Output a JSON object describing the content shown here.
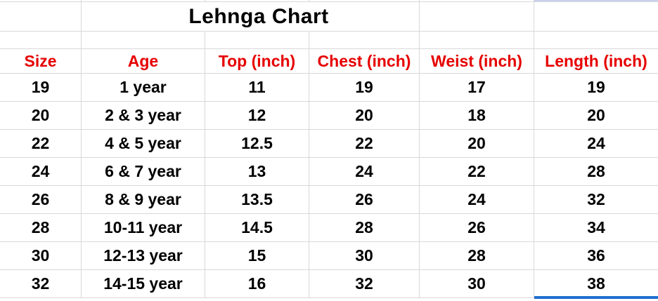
{
  "sheet": {
    "title": "Lehnga Chart",
    "columns": [
      "Size",
      "Age",
      "Top (inch)",
      "Chest (inch)",
      "Weist (inch)",
      "Length (inch)"
    ],
    "rows": [
      [
        "19",
        "1 year",
        "11",
        "19",
        "17",
        "19"
      ],
      [
        "20",
        "2 & 3 year",
        "12",
        "20",
        "18",
        "20"
      ],
      [
        "22",
        "4 & 5 year",
        "12.5",
        "22",
        "20",
        "24"
      ],
      [
        "24",
        "6 & 7 year",
        "13",
        "24",
        "22",
        "28"
      ],
      [
        "26",
        "8 & 9 year",
        "13.5",
        "26",
        "24",
        "32"
      ],
      [
        "28",
        "10-11 year",
        "14.5",
        "28",
        "26",
        "34"
      ],
      [
        "30",
        "12-13 year",
        "15",
        "30",
        "28",
        "36"
      ],
      [
        "32",
        "14-15 year",
        "16",
        "32",
        "30",
        "38"
      ]
    ],
    "colors": {
      "header_text": "#e60000",
      "body_text": "#000000",
      "gridline": "#d8d8d8",
      "selection_blue": "#1e6fd0",
      "selection_tint": "#c9d2ed"
    }
  }
}
